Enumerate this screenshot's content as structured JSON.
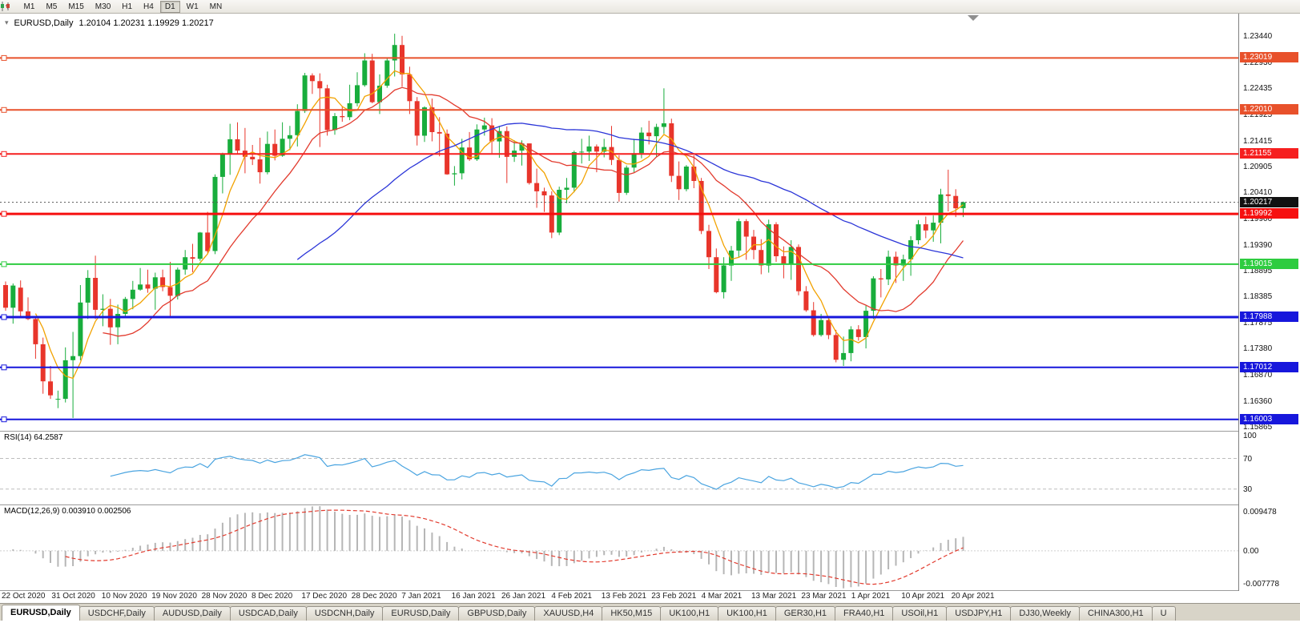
{
  "toolbar": {
    "timeframes": [
      "M1",
      "M5",
      "M15",
      "M30",
      "H1",
      "H4",
      "D1",
      "W1",
      "MN"
    ],
    "active_timeframe": "D1"
  },
  "header": {
    "symbol": "EURUSD,Daily",
    "ohlc": "1.20104 1.20231 1.19929 1.20217"
  },
  "indicators": {
    "rsi": {
      "label": "RSI(14) 64.2587",
      "period": 14,
      "value": "64.2587",
      "level_labels": [
        "100",
        "70",
        "30"
      ],
      "level_values": [
        100,
        70,
        30
      ],
      "dashed_levels": [
        70,
        30
      ],
      "range": [
        10,
        105
      ],
      "color": "#4aa4e0"
    },
    "macd": {
      "label": "MACD(12,26,9) 0.003910 0.002506",
      "fast": 12,
      "slow": 26,
      "signal": 9,
      "main_value": "0.003910",
      "signal_value": "0.002506",
      "scale_labels": [
        "0.009478",
        "0.00",
        "-0.007778"
      ],
      "hist_color": "#b6b6b6",
      "signal_color": "#e23b2e"
    }
  },
  "chart_data": {
    "type": "candlestick",
    "symbol": "EURUSD",
    "timeframe": "Daily",
    "last_ohlc": {
      "open": 1.20104,
      "high": 1.20231,
      "low": 1.19929,
      "close": 1.20217
    },
    "price_axis": {
      "min": 1.1578,
      "max": 1.2388,
      "ticks": [
        "1.23440",
        "1.22930",
        "1.22435",
        "1.21925",
        "1.21415",
        "1.20905",
        "1.20410",
        "1.19900",
        "1.19390",
        "1.18895",
        "1.18385",
        "1.17875",
        "1.17380",
        "1.16870",
        "1.16360",
        "1.15865"
      ]
    },
    "date_axis": [
      "22 Oct 2020",
      "31 Oct 2020",
      "10 Nov 2020",
      "19 Nov 2020",
      "28 Nov 2020",
      "8 Dec 2020",
      "17 Dec 2020",
      "28 Dec 2020",
      "7 Jan 2021",
      "16 Jan 2021",
      "26 Jan 2021",
      "4 Feb 2021",
      "13 Feb 2021",
      "23 Feb 2021",
      "4 Mar 2021",
      "13 Mar 2021",
      "23 Mar 2021",
      "1 Apr 2021",
      "10 Apr 2021",
      "20 Apr 2021"
    ],
    "hlines": [
      {
        "price": 1.23019,
        "label": "1.23019",
        "color": "#e8512b",
        "width": 2
      },
      {
        "price": 1.2201,
        "label": "1.22010",
        "color": "#e8512b",
        "width": 2
      },
      {
        "price": 1.21155,
        "label": "1.21155",
        "color": "#f61f1f",
        "width": 2
      },
      {
        "price": 1.19992,
        "label": "1.19992",
        "color": "#f60f0f",
        "width": 3
      },
      {
        "price": 1.19015,
        "label": "1.19015",
        "color": "#2ecc40",
        "width": 2
      },
      {
        "price": 1.17988,
        "label": "1.17988",
        "color": "#1717dc",
        "width": 3
      },
      {
        "price": 1.17012,
        "label": "1.17012",
        "color": "#1717dc",
        "width": 2
      },
      {
        "price": 1.16003,
        "label": "1.16003",
        "color": "#1717dc",
        "width": 2
      }
    ],
    "current_price": {
      "value": 1.20217,
      "label": "1.20217",
      "badge_color": "#111111"
    },
    "moving_averages": [
      {
        "period": 5,
        "color": "#f2a200"
      },
      {
        "period": 14,
        "color": "#e23b2e"
      },
      {
        "period": 40,
        "color": "#2b35d8"
      }
    ],
    "theme": {
      "up": "#18ad3c",
      "down": "#e8352b",
      "background": "#ffffff"
    },
    "candles": [
      [
        1.1861,
        1.1868,
        1.1811,
        1.1817
      ],
      [
        1.1817,
        1.1864,
        1.1786,
        1.186
      ],
      [
        1.1856,
        1.187,
        1.18,
        1.181
      ],
      [
        1.181,
        1.1837,
        1.1793,
        1.1795
      ],
      [
        1.1795,
        1.18,
        1.1718,
        1.1746
      ],
      [
        1.1746,
        1.1759,
        1.165,
        1.1674
      ],
      [
        1.1674,
        1.1704,
        1.164,
        1.1647
      ],
      [
        1.164,
        1.1656,
        1.1622,
        1.164
      ],
      [
        1.164,
        1.174,
        1.1633,
        1.1715
      ],
      [
        1.1715,
        1.177,
        1.1603,
        1.1723
      ],
      [
        1.1723,
        1.1861,
        1.1715,
        1.1827
      ],
      [
        1.1827,
        1.189,
        1.1795,
        1.1875
      ],
      [
        1.1875,
        1.1918,
        1.1795,
        1.1813
      ],
      [
        1.1813,
        1.1843,
        1.1781,
        1.1815
      ],
      [
        1.1815,
        1.1834,
        1.1745,
        1.1779
      ],
      [
        1.1779,
        1.1823,
        1.1746,
        1.1805
      ],
      [
        1.1805,
        1.1838,
        1.1799,
        1.1834
      ],
      [
        1.1834,
        1.1869,
        1.1814,
        1.1852
      ],
      [
        1.1852,
        1.1894,
        1.185,
        1.1862
      ],
      [
        1.1862,
        1.1891,
        1.1846,
        1.1854
      ],
      [
        1.1854,
        1.1885,
        1.1813,
        1.1876
      ],
      [
        1.1876,
        1.1891,
        1.1849,
        1.1857
      ],
      [
        1.1857,
        1.1906,
        1.1799,
        1.184
      ],
      [
        1.184,
        1.1895,
        1.1833,
        1.1891
      ],
      [
        1.1891,
        1.1929,
        1.1881,
        1.1915
      ],
      [
        1.1915,
        1.1941,
        1.1886,
        1.1912
      ],
      [
        1.1912,
        1.1964,
        1.1908,
        1.1963
      ],
      [
        1.1963,
        1.2003,
        1.1923,
        1.1927
      ],
      [
        1.1927,
        1.2076,
        1.1921,
        1.2071
      ],
      [
        1.2071,
        1.2118,
        1.2039,
        1.2115
      ],
      [
        1.2115,
        1.2174,
        1.2075,
        1.2144
      ],
      [
        1.2144,
        1.2177,
        1.2116,
        1.2122
      ],
      [
        1.2122,
        1.2166,
        1.2078,
        1.211
      ],
      [
        1.211,
        1.2133,
        1.2094,
        1.2105
      ],
      [
        1.2105,
        1.2147,
        1.2058,
        1.208
      ],
      [
        1.208,
        1.2159,
        1.2076,
        1.2135
      ],
      [
        1.2135,
        1.2163,
        1.2103,
        1.2112
      ],
      [
        1.2112,
        1.2177,
        1.211,
        1.2145
      ],
      [
        1.2145,
        1.217,
        1.2123,
        1.2152
      ],
      [
        1.2152,
        1.2212,
        1.213,
        1.2199
      ],
      [
        1.2199,
        1.2273,
        1.2195,
        1.2268
      ],
      [
        1.2268,
        1.2272,
        1.2232,
        1.2257
      ],
      [
        1.2257,
        1.2272,
        1.2129,
        1.2243
      ],
      [
        1.2243,
        1.225,
        1.2151,
        1.2162
      ],
      [
        1.2162,
        1.2195,
        1.2153,
        1.2189
      ],
      [
        1.2189,
        1.2208,
        1.2178,
        1.2187
      ],
      [
        1.2187,
        1.225,
        1.2181,
        1.2214
      ],
      [
        1.2214,
        1.2274,
        1.2208,
        1.2249
      ],
      [
        1.2249,
        1.2311,
        1.2246,
        1.2297
      ],
      [
        1.2297,
        1.231,
        1.2214,
        1.2216
      ],
      [
        1.2216,
        1.227,
        1.2193,
        1.2248
      ],
      [
        1.2248,
        1.2303,
        1.2244,
        1.2297
      ],
      [
        1.2297,
        1.2349,
        1.2266,
        1.2327
      ],
      [
        1.2327,
        1.2345,
        1.2246,
        1.227
      ],
      [
        1.227,
        1.2285,
        1.2193,
        1.2218
      ],
      [
        1.2218,
        1.2226,
        1.2132,
        1.2151
      ],
      [
        1.2151,
        1.2208,
        1.2139,
        1.2206
      ],
      [
        1.2206,
        1.2223,
        1.214,
        1.2158
      ],
      [
        1.2158,
        1.2187,
        1.2111,
        1.2155
      ],
      [
        1.2155,
        1.2163,
        1.2075,
        1.2076
      ],
      [
        1.2076,
        1.2092,
        1.2054,
        1.2078
      ],
      [
        1.2078,
        1.2145,
        1.2066,
        1.2128
      ],
      [
        1.2128,
        1.2158,
        1.2102,
        1.2105
      ],
      [
        1.2105,
        1.2173,
        1.2102,
        1.2163
      ],
      [
        1.2163,
        1.2186,
        1.2151,
        1.2171
      ],
      [
        1.2171,
        1.2185,
        1.2116,
        1.214
      ],
      [
        1.214,
        1.217,
        1.2108,
        1.216
      ],
      [
        1.216,
        1.2169,
        1.2059,
        1.211
      ],
      [
        1.211,
        1.2142,
        1.21,
        1.2122
      ],
      [
        1.2122,
        1.2142,
        1.2093,
        1.2136
      ],
      [
        1.2136,
        1.2136,
        1.2056,
        1.2059
      ],
      [
        1.2059,
        1.2087,
        1.2011,
        1.2043
      ],
      [
        1.2043,
        1.205,
        1.2003,
        1.2035
      ],
      [
        1.2035,
        1.2043,
        1.1952,
        1.1963
      ],
      [
        1.1963,
        1.2052,
        1.1958,
        1.2046
      ],
      [
        1.2046,
        1.2069,
        1.202,
        1.205
      ],
      [
        1.205,
        1.2122,
        1.2041,
        1.2119
      ],
      [
        1.2119,
        1.2145,
        1.2097,
        1.212
      ],
      [
        1.212,
        1.2151,
        1.2102,
        1.213
      ],
      [
        1.213,
        1.2134,
        1.208,
        1.212
      ],
      [
        1.212,
        1.2145,
        1.2109,
        1.2129
      ],
      [
        1.2129,
        1.217,
        1.2094,
        1.2104
      ],
      [
        1.2104,
        1.2113,
        1.2023,
        1.204
      ],
      [
        1.204,
        1.2093,
        1.2036,
        1.2089
      ],
      [
        1.2089,
        1.2145,
        1.208,
        1.2117
      ],
      [
        1.2117,
        1.2167,
        1.2107,
        1.2157
      ],
      [
        1.2157,
        1.218,
        1.2134,
        1.215
      ],
      [
        1.215,
        1.2174,
        1.2109,
        1.2168
      ],
      [
        1.2168,
        1.2243,
        1.2155,
        1.2175
      ],
      [
        1.2175,
        1.2184,
        1.2061,
        1.2073
      ],
      [
        1.2073,
        1.2101,
        1.2026,
        1.2047
      ],
      [
        1.2047,
        1.2094,
        1.2043,
        1.2091
      ],
      [
        1.2091,
        1.2113,
        1.2049,
        1.2063
      ],
      [
        1.2063,
        1.2069,
        1.196,
        1.1966
      ],
      [
        1.1966,
        1.1978,
        1.1892,
        1.1915
      ],
      [
        1.1915,
        1.1932,
        1.1845,
        1.1847
      ],
      [
        1.1847,
        1.1915,
        1.1835,
        1.1899
      ],
      [
        1.1899,
        1.1937,
        1.1869,
        1.1928
      ],
      [
        1.1928,
        1.199,
        1.1915,
        1.1985
      ],
      [
        1.1985,
        1.1989,
        1.191,
        1.1955
      ],
      [
        1.1955,
        1.1968,
        1.1911,
        1.1929
      ],
      [
        1.1929,
        1.195,
        1.1882,
        1.1899
      ],
      [
        1.1899,
        1.1988,
        1.1885,
        1.1979
      ],
      [
        1.1979,
        1.1983,
        1.1906,
        1.1917
      ],
      [
        1.1917,
        1.1936,
        1.1874,
        1.1903
      ],
      [
        1.1903,
        1.1948,
        1.1871,
        1.1935
      ],
      [
        1.1935,
        1.194,
        1.1841,
        1.1849
      ],
      [
        1.1849,
        1.1859,
        1.1809,
        1.1812
      ],
      [
        1.1812,
        1.1828,
        1.1761,
        1.1764
      ],
      [
        1.1764,
        1.1805,
        1.1761,
        1.1793
      ],
      [
        1.1793,
        1.1797,
        1.1756,
        1.1764
      ],
      [
        1.1764,
        1.1774,
        1.1711,
        1.1716
      ],
      [
        1.1716,
        1.1761,
        1.1704,
        1.1729
      ],
      [
        1.1729,
        1.1781,
        1.1713,
        1.1775
      ],
      [
        1.1775,
        1.1783,
        1.1753,
        1.176
      ],
      [
        1.176,
        1.1821,
        1.1738,
        1.1811
      ],
      [
        1.1811,
        1.1878,
        1.1795,
        1.1874
      ],
      [
        1.1874,
        1.1892,
        1.1837,
        1.1872
      ],
      [
        1.1872,
        1.1928,
        1.1861,
        1.1916
      ],
      [
        1.1916,
        1.1926,
        1.1865,
        1.1899
      ],
      [
        1.1899,
        1.192,
        1.1869,
        1.1911
      ],
      [
        1.1911,
        1.1956,
        1.1879,
        1.1948
      ],
      [
        1.1948,
        1.1987,
        1.194,
        1.1979
      ],
      [
        1.1979,
        1.1994,
        1.1952,
        1.1967
      ],
      [
        1.1967,
        1.1996,
        1.1945,
        1.1982
      ],
      [
        1.1982,
        1.2048,
        1.1942,
        1.2037
      ],
      [
        1.2037,
        1.2085,
        1.2004,
        1.2034
      ],
      [
        1.2034,
        1.2047,
        1.1993,
        1.201
      ],
      [
        1.20104,
        1.20231,
        1.19929,
        1.20217
      ]
    ]
  },
  "tabs": {
    "active_index": 0,
    "items": [
      "EURUSD,Daily",
      "USDCHF,Daily",
      "AUDUSD,Daily",
      "USDCAD,Daily",
      "USDCNH,Daily",
      "EURUSD,Daily",
      "GBPUSD,Daily",
      "XAUUSD,H4",
      "HK50,M15",
      "UK100,H1",
      "UK100,H1",
      "GER30,H1",
      "FRA40,H1",
      "USOil,H1",
      "USDJPY,H1",
      "DJ30,Weekly",
      "CHINA300,H1",
      "U"
    ]
  }
}
